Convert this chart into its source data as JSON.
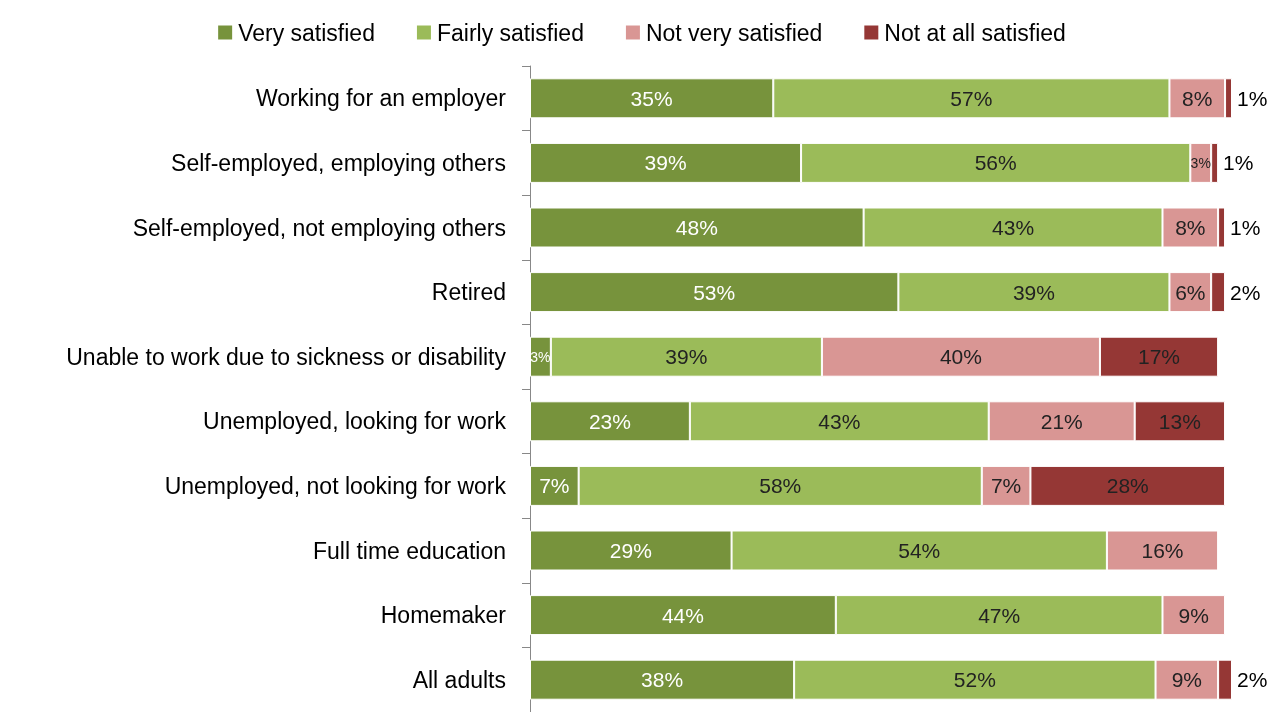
{
  "chart_data": {
    "type": "bar",
    "orientation": "horizontal",
    "stacked": true,
    "legend": "top",
    "categories": [
      "Working for an employer",
      "Self-employed, employing others",
      "Self-employed, not employing others",
      "Retired",
      "Unable to work due to sickness or disability",
      "Unemployed, looking for work",
      "Unemployed, not looking for work",
      "Full time education",
      "Homemaker",
      "All adults"
    ],
    "series": [
      {
        "name": "Very satisfied",
        "color": "#77933c",
        "values": [
          35,
          39,
          48,
          53,
          3,
          23,
          7,
          29,
          44,
          38
        ],
        "value_labels": [
          "35%",
          "39%",
          "48%",
          "53%",
          "3%",
          "23%",
          "7%",
          "29%",
          "44%",
          "38%"
        ]
      },
      {
        "name": "Fairly satisfied",
        "color": "#9bbb59",
        "values": [
          57,
          56,
          43,
          39,
          39,
          43,
          58,
          54,
          47,
          52
        ],
        "value_labels": [
          "57%",
          "56%",
          "43%",
          "39%",
          "39%",
          "43%",
          "58%",
          "54%",
          "47%",
          "52%"
        ]
      },
      {
        "name": "Not very satisfied",
        "color": "#d99694",
        "values": [
          8,
          3,
          8,
          6,
          40,
          21,
          7,
          16,
          9,
          9
        ],
        "value_labels": [
          "8%",
          "3%",
          "8%",
          "6%",
          "40%",
          "21%",
          "7%",
          "16%",
          "9%",
          "9%"
        ]
      },
      {
        "name": "Not at all satisfied",
        "color": "#953735",
        "values": [
          1,
          1,
          1,
          2,
          17,
          13,
          28,
          null,
          null,
          2
        ],
        "value_labels": [
          "1%",
          "1%",
          "1%",
          "2%",
          "17%",
          "13%",
          "28%",
          null,
          null,
          "2%"
        ]
      }
    ]
  }
}
